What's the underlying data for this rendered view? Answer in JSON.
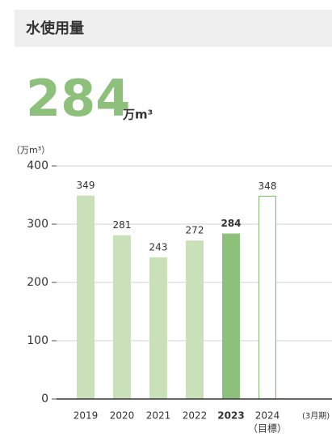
{
  "header": {
    "title": "水使用量"
  },
  "headline": {
    "value": 284,
    "unit": "万m³",
    "color": "#8dc07a"
  },
  "chart_data": {
    "type": "bar",
    "y_unit": "（万m³）",
    "categories": [
      "2019",
      "2020",
      "2021",
      "2022",
      "2023",
      "2024"
    ],
    "category_notes": [
      null,
      null,
      null,
      null,
      null,
      "（目標）"
    ],
    "period_note": "(3月期)",
    "values": [
      349,
      281,
      243,
      272,
      284,
      348
    ],
    "fills": [
      "#c9e0b9",
      "#c9e0b9",
      "#c9e0b9",
      "#c9e0b9",
      "#8dc07a",
      "#ffffff"
    ],
    "strokes": [
      null,
      null,
      null,
      null,
      null,
      "#8dc07a"
    ],
    "bold": [
      false,
      false,
      false,
      false,
      true,
      false
    ],
    "ylim": [
      0,
      400
    ],
    "yticks": [
      0,
      100,
      200,
      300,
      400
    ],
    "grid": true
  }
}
